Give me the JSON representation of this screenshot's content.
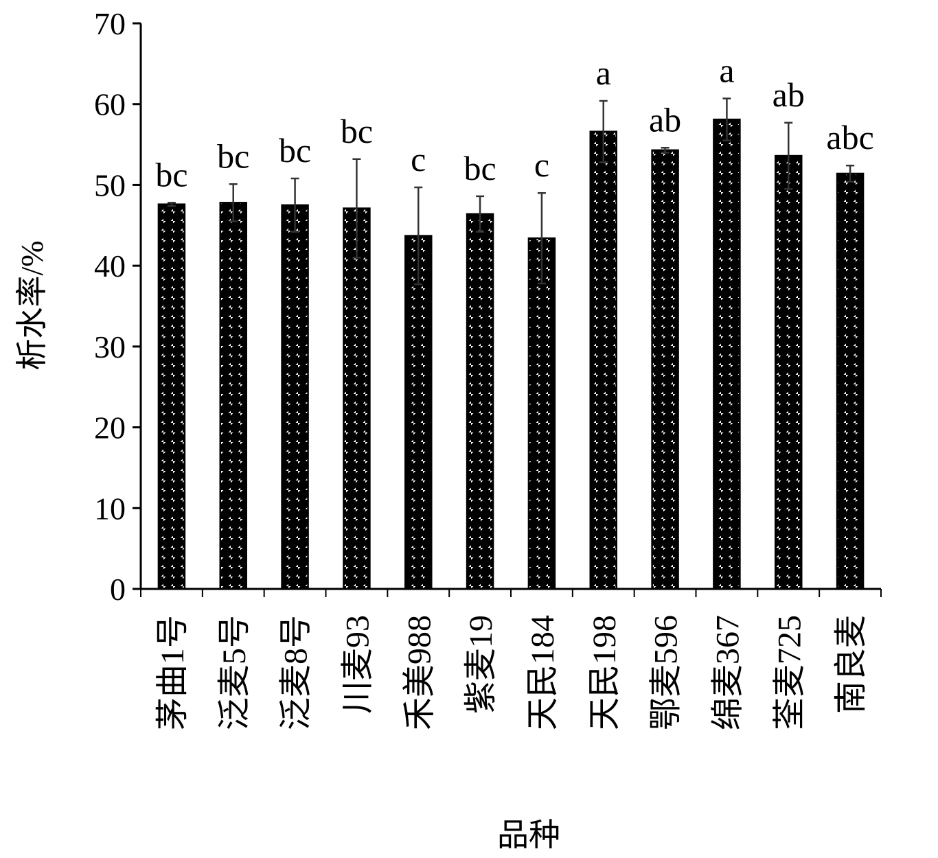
{
  "chart_data": {
    "type": "bar",
    "xlabel": "品种",
    "ylabel": "析水率/%",
    "ylim": [
      0,
      70
    ],
    "yticks": [
      0,
      10,
      20,
      30,
      40,
      50,
      60,
      70
    ],
    "grid": false,
    "legend": "none",
    "categories": [
      "茅曲1号",
      "泛麦5号",
      "泛麦8号",
      "川麦93",
      "禾美988",
      "紫麦19",
      "天民184",
      "天民198",
      "鄂麦596",
      "绵麦367",
      "荃麦725",
      "南良麦"
    ],
    "values": [
      47.6,
      47.8,
      47.5,
      47.1,
      43.7,
      46.4,
      43.4,
      56.6,
      54.3,
      58.1,
      53.6,
      51.4
    ],
    "errors": [
      0.2,
      2.3,
      3.3,
      6.1,
      6.0,
      2.2,
      5.6,
      3.8,
      0.3,
      2.6,
      4.1,
      1.0
    ],
    "significance": [
      "bc",
      "bc",
      "bc",
      "bc",
      "c",
      "bc",
      "c",
      "a",
      "ab",
      "a",
      "ab",
      "abc"
    ]
  }
}
